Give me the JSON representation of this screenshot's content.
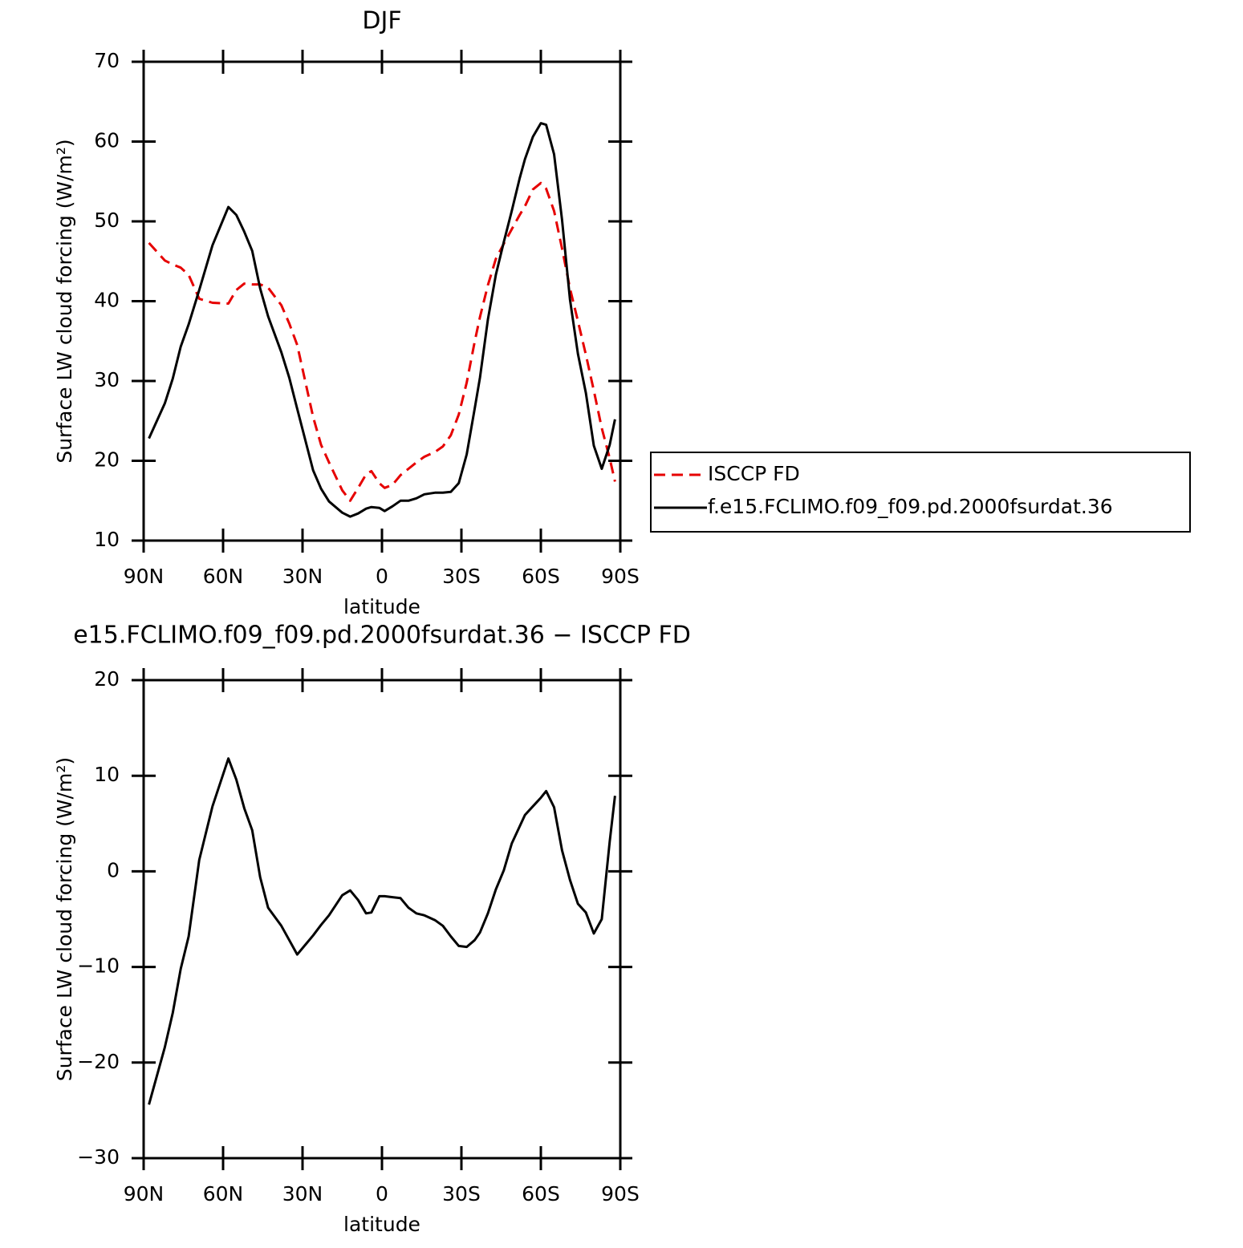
{
  "chart_data": [
    {
      "type": "line",
      "title": "DJF",
      "x_label": "latitude",
      "y_label": "Surface LW cloud forcing (W/m²)",
      "x": [
        88,
        82,
        79,
        76,
        73,
        69,
        64,
        58,
        55,
        52,
        49,
        46,
        43,
        38,
        35,
        32,
        26,
        23,
        20,
        15,
        12,
        9,
        6,
        4,
        1,
        -1,
        -4,
        -7,
        -10,
        -13,
        -16,
        -20,
        -23,
        -26,
        -29,
        -32,
        -35,
        -37,
        -40,
        -43,
        -46,
        -49,
        -52,
        -54,
        -57,
        -60,
        -62,
        -65,
        -68,
        -71,
        -74,
        -77,
        -80,
        -83,
        -86,
        -88
      ],
      "xlim": [
        90,
        -90
      ],
      "xticks": [
        {
          "value": 90,
          "label": "90N"
        },
        {
          "value": 60,
          "label": "60N"
        },
        {
          "value": 30,
          "label": "30N"
        },
        0,
        {
          "value": -30,
          "label": "30S"
        },
        {
          "value": -60,
          "label": "60S"
        },
        {
          "value": -90,
          "label": "90S"
        }
      ],
      "ylim": [
        10,
        70
      ],
      "yticks": [
        10,
        20,
        30,
        40,
        50,
        60,
        70
      ],
      "legend": "right",
      "series": [
        {
          "name": "ISCCP FD",
          "color": "#e60000",
          "line_style": "dashed",
          "values": [
            47.3,
            45.1,
            44.6,
            44.2,
            43.3,
            40.3,
            39.8,
            39.7,
            41.4,
            42.2,
            42.1,
            42.1,
            41.7,
            39.5,
            37.2,
            34.5,
            25.5,
            22.0,
            19.8,
            16.3,
            15.0,
            16.6,
            18.3,
            18.7,
            17.2,
            16.6,
            17.0,
            18.2,
            19.0,
            19.8,
            20.5,
            21.1,
            21.8,
            23.2,
            25.8,
            29.8,
            34.9,
            38.0,
            42.0,
            45.3,
            47.2,
            49.0,
            50.8,
            51.9,
            54.0,
            54.8,
            54.1,
            51.3,
            46.6,
            41.6,
            37.5,
            33.3,
            28.8,
            24.1,
            20.3,
            17.4
          ]
        },
        {
          "name": "f.e15.FCLIMO.f09_f09.pd.2000fsurdat.36",
          "color": "#000000",
          "line_style": "solid",
          "values": [
            22.8,
            27.2,
            30.3,
            34.3,
            37.1,
            41.4,
            47.0,
            51.8,
            50.8,
            48.7,
            46.3,
            41.6,
            38.1,
            33.6,
            30.4,
            26.5,
            18.8,
            16.5,
            14.9,
            13.5,
            13.0,
            13.4,
            14.0,
            14.2,
            14.1,
            13.7,
            14.3,
            15.0,
            15.0,
            15.3,
            15.8,
            16.0,
            16.0,
            16.1,
            17.2,
            20.8,
            26.5,
            30.4,
            37.7,
            43.3,
            47.4,
            51.3,
            55.4,
            57.8,
            60.6,
            62.3,
            62.1,
            58.4,
            50.2,
            40.2,
            33.4,
            28.5,
            21.9,
            19.0,
            22.0,
            25.2
          ]
        }
      ]
    },
    {
      "type": "line",
      "title": "e15.FCLIMO.f09_f09.pd.2000fsurdat.36 − ISCCP FD",
      "x_label": "latitude",
      "y_label": "Surface LW cloud forcing (W/m²)",
      "x": [
        88,
        82,
        79,
        76,
        73,
        69,
        64,
        58,
        55,
        52,
        49,
        46,
        43,
        38,
        35,
        32,
        26,
        23,
        20,
        15,
        12,
        9,
        6,
        4,
        1,
        -1,
        -4,
        -7,
        -10,
        -13,
        -16,
        -20,
        -23,
        -26,
        -29,
        -32,
        -35,
        -37,
        -40,
        -43,
        -46,
        -49,
        -52,
        -54,
        -57,
        -60,
        -62,
        -65,
        -68,
        -71,
        -74,
        -77,
        -80,
        -83,
        -86,
        -88
      ],
      "xlim": [
        90,
        -90
      ],
      "xticks": [
        {
          "value": 90,
          "label": "90N"
        },
        {
          "value": 60,
          "label": "60N"
        },
        {
          "value": 30,
          "label": "30N"
        },
        0,
        {
          "value": -30,
          "label": "30S"
        },
        {
          "value": -60,
          "label": "60S"
        },
        {
          "value": -90,
          "label": "90S"
        }
      ],
      "ylim": [
        -30,
        20
      ],
      "yticks": [
        {
          "value": -30,
          "label": "−30"
        },
        {
          "value": -20,
          "label": "−20"
        },
        {
          "value": -10,
          "label": "−10"
        },
        0,
        10,
        20
      ],
      "series": [
        {
          "color": "#000000",
          "line_style": "solid",
          "values": [
            -24.4,
            -18.4,
            -14.8,
            -10.2,
            -6.8,
            1.2,
            6.8,
            11.8,
            9.6,
            6.6,
            4.3,
            -0.6,
            -3.8,
            -5.7,
            -7.2,
            -8.7,
            -6.7,
            -5.6,
            -4.6,
            -2.5,
            -2.0,
            -3.0,
            -4.4,
            -4.3,
            -2.6,
            -2.6,
            -2.7,
            -2.8,
            -3.8,
            -4.4,
            -4.6,
            -5.1,
            -5.7,
            -6.8,
            -7.8,
            -7.9,
            -7.2,
            -6.4,
            -4.4,
            -1.9,
            0.1,
            2.9,
            4.7,
            5.9,
            6.8,
            7.7,
            8.4,
            6.7,
            2.2,
            -0.9,
            -3.4,
            -4.3,
            -6.5,
            -5.0,
            3.1,
            7.9
          ]
        }
      ]
    }
  ]
}
